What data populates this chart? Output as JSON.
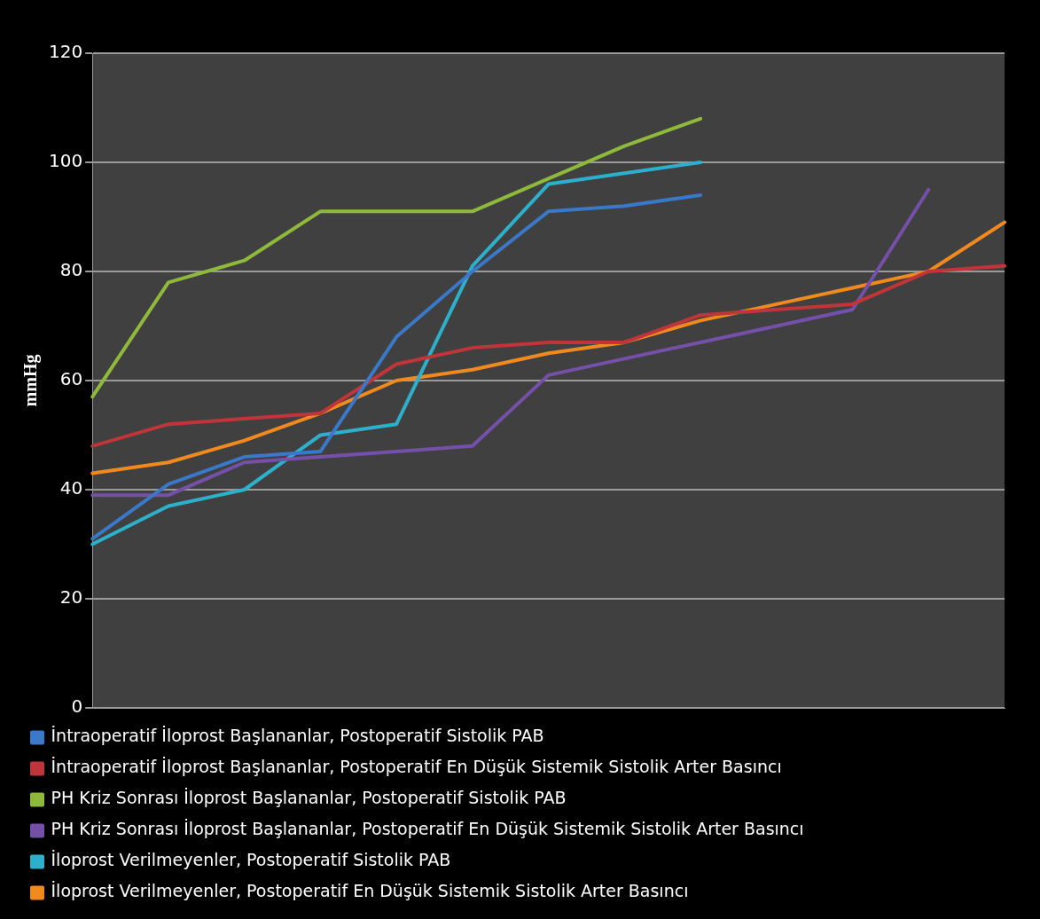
{
  "chart_data": {
    "type": "line",
    "ylabel": "mmHg",
    "categories": [
      null,
      null,
      null,
      null,
      null,
      null,
      null,
      null,
      null,
      null,
      null,
      null,
      null
    ],
    "ylim": [
      0,
      120
    ],
    "yticks": [
      0,
      20,
      40,
      60,
      80,
      100,
      120
    ],
    "grid": "y",
    "legend": "bottom",
    "tick_labels": "y",
    "marker": "none",
    "line_style": "solid",
    "series": [
      {
        "name": "İntraoperatif İloprost Başlananlar, Postoperatif Sistolik PAB",
        "color": "#3a78c8",
        "values": [
          31,
          41,
          46,
          47,
          68,
          80,
          91,
          92,
          94,
          null,
          null,
          null,
          null
        ]
      },
      {
        "name": "İntraoperatif İloprost Başlananlar, Postoperatif En Düşük Sistemik Sistolik Arter Basıncı",
        "color": "#c0353a",
        "values": [
          48,
          52,
          53,
          54,
          63,
          66,
          67,
          67,
          72,
          73,
          74,
          80,
          81
        ]
      },
      {
        "name": "PH Kriz Sonrası İloprost Başlananlar, Postoperatif Sistolik PAB",
        "color": "#8fb93a",
        "values": [
          57,
          78,
          82,
          91,
          91,
          91,
          97,
          103,
          108,
          null,
          null,
          null,
          null
        ]
      },
      {
        "name": "PH Kriz Sonrası İloprost Başlananlar, Postoperatif En Düşük Sistemik Sistolik Arter Basıncı",
        "color": "#7550a8",
        "values": [
          39,
          39,
          45,
          46,
          47,
          48,
          61,
          64,
          67,
          70,
          73,
          95,
          null
        ]
      },
      {
        "name": "İloprost Verilmeyenler, Postoperatif Sistolik PAB",
        "color": "#2eb0cc",
        "values": [
          30,
          37,
          40,
          50,
          52,
          81,
          96,
          98,
          100,
          null,
          null,
          null,
          null
        ]
      },
      {
        "name": "İloprost Verilmeyenler, Postoperatif En Düşük Sistemik Sistolik Arter Basıncı",
        "color": "#f08a1e",
        "values": [
          43,
          45,
          49,
          54,
          60,
          62,
          65,
          67,
          71,
          74,
          77,
          80,
          89
        ]
      }
    ]
  }
}
